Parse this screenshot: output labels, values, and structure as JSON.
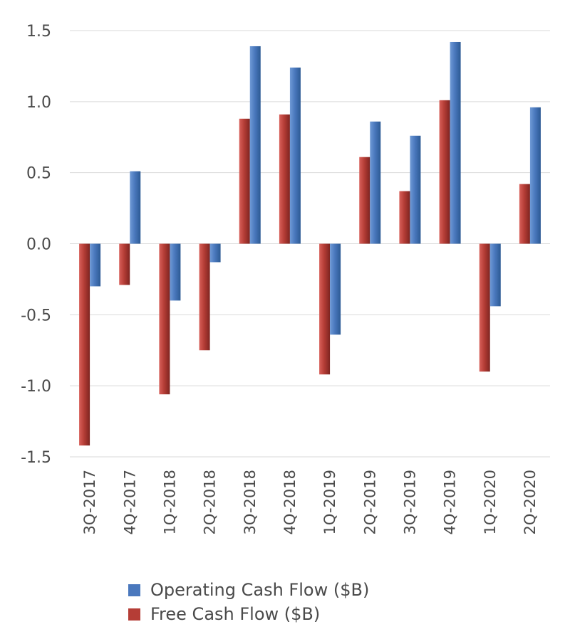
{
  "chart_data": {
    "type": "bar",
    "categories": [
      "3Q-2017",
      "4Q-2017",
      "1Q-2018",
      "2Q-2018",
      "3Q-2018",
      "4Q-2018",
      "1Q-2019",
      "2Q-2019",
      "3Q-2019",
      "4Q-2019",
      "1Q-2020",
      "2Q-2020"
    ],
    "series": [
      {
        "name": "Operating Cash Flow ($B)",
        "color": "#4472c4",
        "values": [
          -0.3,
          0.51,
          -0.4,
          -0.13,
          1.39,
          1.24,
          -0.64,
          0.86,
          0.76,
          1.42,
          -0.44,
          0.96
        ]
      },
      {
        "name": "Free Cash Flow ($B)",
        "color": "#c0392b",
        "values": [
          -1.42,
          -0.29,
          -1.06,
          -0.75,
          0.88,
          0.91,
          -0.92,
          0.61,
          0.37,
          1.01,
          -0.9,
          0.42
        ]
      }
    ],
    "ylim": [
      -1.5,
      1.5
    ],
    "yticks": [
      "1.5",
      "1.0",
      "0.5",
      "0.0",
      "-0.5",
      "-1.0",
      "-1.5"
    ],
    "ytick_values": [
      1.5,
      1.0,
      0.5,
      0.0,
      -0.5,
      -1.0,
      -1.5
    ],
    "grid": true,
    "legend_position": "bottom"
  }
}
